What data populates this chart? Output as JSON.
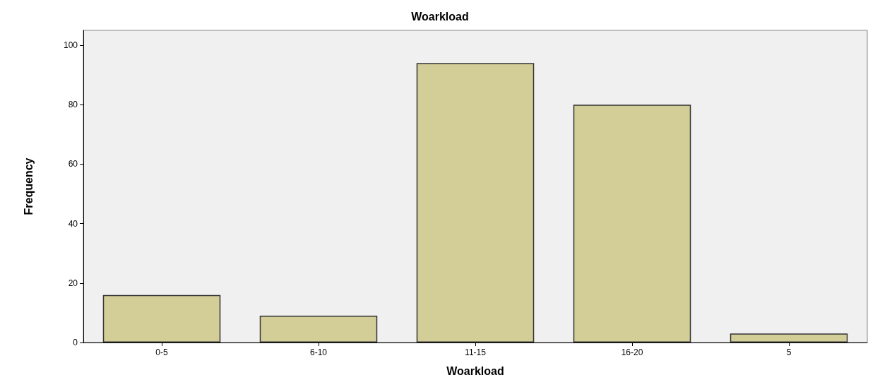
{
  "chart_data": {
    "type": "bar",
    "title": "Woarkload",
    "xlabel": "Woarkload",
    "ylabel": "Frequency",
    "categories": [
      "0-5",
      "6-10",
      "11-15",
      "16-20",
      "5"
    ],
    "values": [
      16,
      9,
      94,
      80,
      3
    ],
    "color": "#d3ce98",
    "ylim": [
      0,
      105
    ],
    "yticks": [
      0,
      20,
      40,
      60,
      80,
      100
    ],
    "grid": false
  }
}
